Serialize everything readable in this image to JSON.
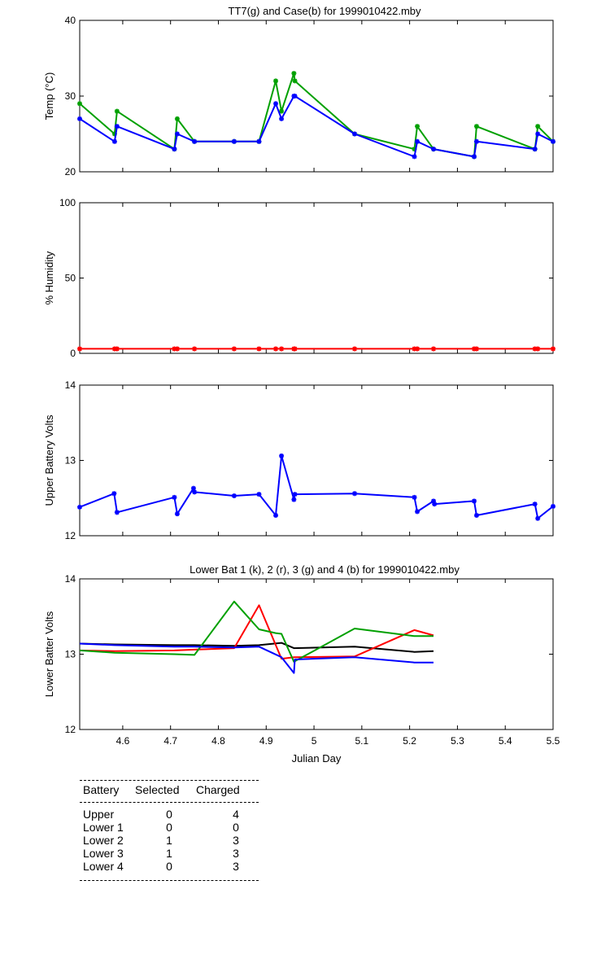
{
  "x_axis": {
    "label": "Julian Day",
    "min": 4.51,
    "max": 5.5,
    "ticks": [
      4.6,
      4.7,
      4.8,
      4.9,
      5,
      5.1,
      5.2,
      5.3,
      5.4,
      5.5
    ],
    "tick_labels": [
      "4.6",
      "4.7",
      "4.8",
      "4.9",
      "5",
      "5.1",
      "5.2",
      "5.3",
      "5.4",
      "5.5"
    ]
  },
  "chart_data": [
    {
      "id": "temp",
      "type": "line",
      "title": "TT7(g) and Case(b) for 1999010422.mby",
      "xlabel": "",
      "ylabel": "Temp  (°C)",
      "ylim": [
        20,
        40
      ],
      "yticks": [
        20,
        30,
        40
      ],
      "ytick_labels": [
        "20",
        "30",
        "40"
      ],
      "markers": true,
      "series": [
        {
          "color": "#00a000",
          "x": [
            4.51,
            4.583,
            4.588,
            4.708,
            4.714,
            4.75,
            4.833,
            4.885,
            4.92,
            4.932,
            4.958,
            4.96,
            5.085,
            5.21,
            5.216,
            5.25,
            5.335,
            5.34,
            5.462,
            5.468,
            5.5
          ],
          "y": [
            29,
            25,
            28,
            23,
            27,
            24,
            24,
            24,
            32,
            28,
            33,
            32,
            25,
            23,
            26,
            23,
            22,
            26,
            23,
            26,
            24
          ]
        },
        {
          "color": "#0000ff",
          "x": [
            4.51,
            4.583,
            4.588,
            4.708,
            4.714,
            4.75,
            4.833,
            4.885,
            4.92,
            4.932,
            4.958,
            4.96,
            5.085,
            5.21,
            5.216,
            5.25,
            5.335,
            5.34,
            5.462,
            5.468,
            5.5
          ],
          "y": [
            27,
            24,
            26,
            23,
            25,
            24,
            24,
            24,
            29,
            27,
            30,
            30,
            25,
            22,
            24,
            23,
            22,
            24,
            23,
            25,
            24
          ]
        }
      ]
    },
    {
      "id": "humidity",
      "type": "line",
      "title": "",
      "xlabel": "",
      "ylabel": "% Humidity",
      "ylim": [
        0,
        100
      ],
      "yticks": [
        0,
        50,
        100
      ],
      "ytick_labels": [
        "0",
        "50",
        "100"
      ],
      "markers": true,
      "series": [
        {
          "color": "#ff0000",
          "x": [
            4.51,
            4.583,
            4.588,
            4.708,
            4.714,
            4.75,
            4.833,
            4.885,
            4.92,
            4.932,
            4.958,
            4.96,
            5.085,
            5.21,
            5.216,
            5.25,
            5.335,
            5.34,
            5.462,
            5.468,
            5.5
          ],
          "y": [
            3,
            3,
            3,
            3,
            3,
            3,
            3,
            3,
            3,
            3,
            3,
            3,
            3,
            3,
            3,
            3,
            3,
            3,
            3,
            3,
            3
          ]
        }
      ]
    },
    {
      "id": "upper",
      "type": "line",
      "title": "",
      "xlabel": "",
      "ylabel": "Upper Battery Volts",
      "ylim": [
        12,
        14
      ],
      "yticks": [
        12,
        13,
        14
      ],
      "ytick_labels": [
        "12",
        "13",
        "14"
      ],
      "markers": true,
      "series": [
        {
          "color": "#0000ff",
          "x": [
            4.51,
            4.582,
            4.588,
            4.708,
            4.714,
            4.748,
            4.75,
            4.833,
            4.885,
            4.92,
            4.932,
            4.958,
            4.96,
            5.085,
            5.21,
            5.216,
            5.25,
            5.252,
            5.335,
            5.34,
            5.462,
            5.468,
            5.5
          ],
          "y": [
            12.38,
            12.56,
            12.31,
            12.51,
            12.29,
            12.63,
            12.58,
            12.53,
            12.55,
            12.27,
            13.06,
            12.48,
            12.55,
            12.56,
            12.51,
            12.32,
            12.46,
            12.42,
            12.46,
            12.27,
            12.42,
            12.23,
            12.39
          ]
        }
      ]
    },
    {
      "id": "lower",
      "type": "line",
      "title": "Lower Bat 1 (k), 2 (r), 3 (g) and 4 (b) for 1999010422.mby",
      "xlabel": "Julian Day",
      "ylabel": "Lower Batter Volts",
      "ylim": [
        12,
        14
      ],
      "yticks": [
        12,
        13,
        14
      ],
      "ytick_labels": [
        "12",
        "13",
        "14"
      ],
      "markers": false,
      "series": [
        {
          "color": "#000000",
          "x": [
            4.51,
            4.583,
            4.708,
            4.75,
            4.833,
            4.885,
            4.932,
            4.958,
            5.085,
            5.21,
            5.25
          ],
          "y": [
            13.14,
            13.13,
            13.12,
            13.12,
            13.11,
            13.12,
            13.15,
            13.08,
            13.1,
            13.03,
            13.04
          ]
        },
        {
          "color": "#ff0000",
          "x": [
            4.51,
            4.583,
            4.708,
            4.75,
            4.833,
            4.885,
            4.932,
            4.958,
            5.085,
            5.21,
            5.25
          ],
          "y": [
            13.05,
            13.04,
            13.05,
            13.06,
            13.08,
            13.65,
            12.94,
            12.96,
            12.97,
            13.32,
            13.25
          ]
        },
        {
          "color": "#00a000",
          "x": [
            4.51,
            4.583,
            4.708,
            4.75,
            4.833,
            4.885,
            4.92,
            4.932,
            4.958,
            5.085,
            5.21,
            5.25
          ],
          "y": [
            13.05,
            13.02,
            13.0,
            12.99,
            13.7,
            13.33,
            13.28,
            13.27,
            12.9,
            13.34,
            13.24,
            13.24
          ]
        },
        {
          "color": "#0000ff",
          "x": [
            4.51,
            4.583,
            4.708,
            4.75,
            4.833,
            4.885,
            4.932,
            4.958,
            4.96,
            5.085,
            5.21,
            5.25
          ],
          "y": [
            13.14,
            13.12,
            13.1,
            13.1,
            13.09,
            13.1,
            12.96,
            12.75,
            12.93,
            12.96,
            12.89,
            12.89
          ]
        }
      ]
    }
  ],
  "battery_table": {
    "headers": [
      "Battery",
      "Selected",
      "Charged"
    ],
    "rows": [
      {
        "battery": "Upper",
        "selected": "0",
        "charged": "4"
      },
      {
        "battery": "Lower 1",
        "selected": "0",
        "charged": "0"
      },
      {
        "battery": "Lower 2",
        "selected": "1",
        "charged": "3"
      },
      {
        "battery": "Lower 3",
        "selected": "1",
        "charged": "3"
      },
      {
        "battery": "Lower 4",
        "selected": "0",
        "charged": "3"
      }
    ]
  }
}
